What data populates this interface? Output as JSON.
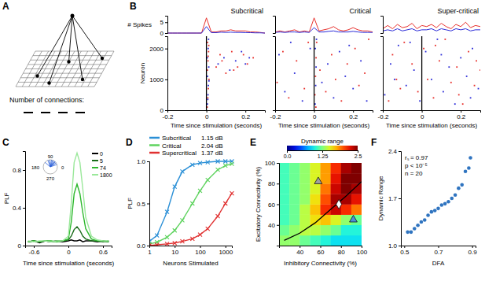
{
  "chart_data": [
    {
      "type": "diagram",
      "panel_label": "A",
      "annotation": "Number of connections:"
    },
    {
      "type": "raster",
      "panel_label": "B",
      "title": "Subcritical",
      "xlabel": "Time since stimulation (seconds)",
      "ylabel": "Neuron",
      "count_ylabel": "# Spikes",
      "xlim": [
        -0.2,
        0.3
      ],
      "xticks": [
        -0.2,
        0,
        0.2
      ],
      "ylim": [
        0,
        2400
      ],
      "yticks": [
        0,
        1000,
        2000
      ],
      "count_ylim": [
        0,
        8
      ],
      "count_yticks": [
        0,
        5
      ],
      "event_x": 0,
      "count_x": [
        -0.2,
        -0.175,
        -0.15,
        -0.125,
        -0.1,
        -0.075,
        -0.05,
        -0.025,
        0,
        0.025,
        0.05,
        0.075,
        0.1,
        0.125,
        0.15,
        0.175,
        0.2,
        0.225,
        0.25,
        0.275,
        0.3
      ],
      "counts": [
        {
          "color": "#e8302c",
          "values": [
            0,
            0,
            0,
            0,
            0,
            0,
            0,
            0,
            7,
            0.5,
            0.5,
            1,
            1,
            1.5,
            1,
            1,
            1,
            0.5,
            0.5,
            0.3,
            0
          ]
        },
        {
          "color": "#2b2bd8",
          "values": [
            0,
            0,
            0,
            0,
            0,
            0,
            0,
            0,
            3,
            0.2,
            0.2,
            0.4,
            0.3,
            0.4,
            0.3,
            0.3,
            0.2,
            0.2,
            0.1,
            0.1,
            0
          ]
        }
      ],
      "spikes": [
        {
          "color": "#e8302c",
          "x": [
            0.004,
            0.007,
            0.01,
            0.013,
            0.005,
            0.008,
            0.011,
            0.006,
            0.009,
            0.012,
            0.05,
            0.07,
            0.1,
            0.13,
            0.16,
            0.19,
            0.21,
            0.24,
            0.08,
            0.14
          ],
          "y": [
            100,
            400,
            700,
            1000,
            1300,
            1600,
            1900,
            2200,
            1750,
            2100,
            1400,
            1800,
            1200,
            1900,
            1400,
            1800,
            1500,
            1700,
            1600,
            1300
          ]
        },
        {
          "color": "#2b2bd8",
          "x": [
            0.005,
            0.008,
            0.01,
            0.006,
            0.012,
            0.004,
            0.009,
            0.011,
            0.007,
            0.013,
            0.06,
            0.09,
            0.12,
            0.15,
            0.18,
            0.2,
            0.22
          ],
          "y": [
            200,
            500,
            800,
            1100,
            1400,
            1700,
            2000,
            2300,
            350,
            950,
            1500,
            1700,
            1300,
            1600,
            1900,
            1500,
            1700
          ]
        }
      ]
    },
    {
      "type": "raster",
      "title": "Critical",
      "xlabel": "Time since stimulation (seconds)",
      "tick_labels": "x",
      "xlim": [
        -0.2,
        0.3
      ],
      "xticks": [
        -0.2,
        0,
        0.2
      ],
      "ylim": [
        0,
        2400
      ],
      "count_ylim": [
        0,
        8
      ],
      "event_x": 0,
      "count_x": [
        -0.2,
        -0.175,
        -0.15,
        -0.125,
        -0.1,
        -0.075,
        -0.05,
        -0.025,
        0,
        0.025,
        0.05,
        0.075,
        0.1,
        0.125,
        0.15,
        0.175,
        0.2,
        0.225,
        0.25,
        0.275,
        0.3
      ],
      "counts": [
        {
          "color": "#e8302c",
          "values": [
            0.5,
            1,
            0.5,
            1,
            1.5,
            0.5,
            1,
            0.5,
            7,
            1,
            1.5,
            2,
            3,
            1.5,
            1,
            1.5,
            2.5,
            1.5,
            1,
            1,
            0.5
          ]
        },
        {
          "color": "#2b2bd8",
          "values": [
            0.3,
            0.5,
            0.3,
            0.5,
            0.5,
            0.3,
            0.5,
            0.3,
            2.5,
            0.5,
            0.5,
            0.8,
            1,
            0.5,
            0.5,
            0.5,
            0.8,
            0.5,
            0.3,
            0.3,
            0.3
          ]
        }
      ],
      "spikes": [
        {
          "color": "#e8302c",
          "x": [
            -0.19,
            -0.16,
            -0.13,
            -0.09,
            -0.05,
            -0.03,
            0.004,
            0.007,
            0.01,
            0.013,
            0.009,
            0.03,
            0.06,
            0.09,
            0.11,
            0.14,
            0.17,
            0.21,
            0.23,
            0.26,
            0.28
          ],
          "y": [
            900,
            1900,
            400,
            1600,
            700,
            2200,
            500,
            1100,
            1700,
            2200,
            100,
            1300,
            600,
            1800,
            1000,
            300,
            1500,
            2000,
            800,
            1200,
            2300
          ]
        },
        {
          "color": "#2b2bd8",
          "x": [
            -0.18,
            -0.15,
            -0.1,
            -0.06,
            -0.02,
            0.005,
            0.008,
            0.01,
            0.006,
            0.012,
            0.04,
            0.07,
            0.1,
            0.13,
            0.16,
            0.2,
            0.24,
            0.27,
            -0.12,
            0.18
          ],
          "y": [
            1800,
            600,
            1200,
            300,
            2000,
            200,
            800,
            1400,
            2000,
            2300,
            900,
            1500,
            400,
            1900,
            1100,
            700,
            1600,
            300,
            2200,
            2100
          ]
        }
      ]
    },
    {
      "type": "raster",
      "title": "Super-critical",
      "xlabel": "Time since stimulation (seconds)",
      "tick_labels": "x",
      "xlim": [
        -0.2,
        0.3
      ],
      "xticks": [
        -0.2,
        0,
        0.2
      ],
      "ylim": [
        0,
        2400
      ],
      "count_ylim": [
        0,
        8
      ],
      "event_x": 0,
      "count_x": [
        -0.2,
        -0.175,
        -0.15,
        -0.125,
        -0.1,
        -0.075,
        -0.05,
        -0.025,
        0,
        0.025,
        0.05,
        0.075,
        0.1,
        0.125,
        0.15,
        0.175,
        0.2,
        0.225,
        0.25,
        0.275,
        0.3
      ],
      "counts": [
        {
          "color": "#e8302c",
          "values": [
            2,
            3.5,
            2,
            4,
            2.5,
            3,
            4.5,
            2,
            3.5,
            3,
            4,
            2.5,
            4.5,
            3,
            2,
            4,
            3,
            5,
            2.5,
            3.5,
            3
          ]
        },
        {
          "color": "#2b2bd8",
          "values": [
            1,
            1.5,
            1,
            2,
            1,
            1.5,
            2,
            1,
            1.5,
            1.5,
            2,
            1,
            2,
            1.5,
            1,
            2,
            1.5,
            2,
            1,
            1.5,
            1.5
          ]
        }
      ],
      "spikes": [
        {
          "color": "#e8302c",
          "x": [
            -0.2,
            -0.17,
            -0.15,
            -0.11,
            -0.09,
            -0.05,
            -0.02,
            0.01,
            0.03,
            0.06,
            0.09,
            0.12,
            0.15,
            0.18,
            0.21,
            0.24,
            0.27,
            0.3,
            -0.13,
            0.07,
            0.19,
            0.28
          ],
          "y": [
            1200,
            300,
            1800,
            700,
            2200,
            1500,
            600,
            2000,
            1000,
            400,
            1600,
            2300,
            900,
            1400,
            200,
            1900,
            800,
            1300,
            1000,
            2100,
            500,
            1600
          ]
        },
        {
          "color": "#2b2bd8",
          "x": [
            -0.19,
            -0.16,
            -0.12,
            -0.08,
            -0.04,
            -0.01,
            0.02,
            0.05,
            0.08,
            0.11,
            0.14,
            0.17,
            0.2,
            0.23,
            0.26,
            0.29,
            -0.14,
            0.1,
            0.25,
            -0.06
          ],
          "y": [
            500,
            1500,
            2100,
            800,
            1300,
            300,
            1900,
            1000,
            2300,
            600,
            1400,
            200,
            1700,
            1100,
            2000,
            700,
            1000,
            1800,
            400,
            2200
          ]
        }
      ]
    },
    {
      "type": "line",
      "panel_label": "C",
      "xlabel": "Time since stimulation (seconds)",
      "ylabel": "PLF",
      "xlim": [
        -0.75,
        0.75
      ],
      "xticks": [
        -0.6,
        0,
        0.6
      ],
      "ylim": [
        0,
        1
      ],
      "yticks": [
        0,
        0.4,
        0.8
      ],
      "legend": "upper right",
      "x": [
        -0.7,
        -0.6,
        -0.5,
        -0.4,
        -0.3,
        -0.2,
        -0.1,
        0,
        0.05,
        0.1,
        0.15,
        0.2,
        0.25,
        0.3,
        0.4,
        0.5,
        0.6,
        0.7
      ],
      "series": [
        {
          "name": "0",
          "color": "#000000",
          "values": [
            0.04,
            0.05,
            0.03,
            0.05,
            0.04,
            0.05,
            0.04,
            0.05,
            0.06,
            0.05,
            0.05,
            0.06,
            0.04,
            0.05,
            0.05,
            0.04,
            0.05,
            0.04
          ]
        },
        {
          "name": "5",
          "color": "#1a6b1a",
          "values": [
            0.04,
            0.05,
            0.04,
            0.05,
            0.04,
            0.05,
            0.05,
            0.06,
            0.1,
            0.17,
            0.2,
            0.16,
            0.1,
            0.07,
            0.05,
            0.05,
            0.04,
            0.05
          ]
        },
        {
          "name": "74",
          "color": "#2db82d",
          "values": [
            0.04,
            0.05,
            0.04,
            0.05,
            0.05,
            0.04,
            0.05,
            0.07,
            0.25,
            0.55,
            0.65,
            0.55,
            0.35,
            0.18,
            0.07,
            0.05,
            0.05,
            0.04
          ]
        },
        {
          "name": "1800",
          "color": "#9be89b",
          "values": [
            0.05,
            0.04,
            0.05,
            0.05,
            0.04,
            0.05,
            0.05,
            0.1,
            0.45,
            0.88,
            0.98,
            0.88,
            0.6,
            0.3,
            0.1,
            0.06,
            0.05,
            0.05
          ]
        }
      ],
      "inset": {
        "angle_ticks": [
          90,
          180,
          0,
          270
        ],
        "phases": [
          20,
          35,
          45,
          50,
          60,
          70,
          80,
          95,
          110,
          140
        ],
        "color": "#2b5fd8"
      }
    },
    {
      "type": "line",
      "panel_label": "D",
      "xlabel": "Neurons Stimulated",
      "ylabel": "PLF",
      "log": "x",
      "legend": "top",
      "xlim": [
        1,
        1800
      ],
      "xticks": [
        1,
        10,
        100,
        1000
      ],
      "ylim": [
        0,
        1
      ],
      "yticks": [
        {
          "value": 0,
          "label": "0.0"
        },
        0.5,
        {
          "value": 1,
          "label": "1.0"
        }
      ],
      "x": [
        1,
        2,
        5,
        10,
        20,
        50,
        100,
        200,
        500,
        1000,
        1800
      ],
      "series": [
        {
          "name": "Subcritical",
          "annotation": "1.15 dB",
          "color": "#2a8fd6",
          "marker": "cross",
          "values": [
            0.05,
            0.12,
            0.4,
            0.7,
            0.88,
            0.96,
            0.98,
            0.99,
            1,
            1,
            1
          ]
        },
        {
          "name": "Critical",
          "annotation": "2.04 dB",
          "color": "#5fd35f",
          "marker": "cross",
          "values": [
            0.02,
            0.04,
            0.1,
            0.18,
            0.3,
            0.5,
            0.65,
            0.78,
            0.9,
            0.95,
            0.97
          ]
        },
        {
          "name": "Supercritical",
          "annotation": "1.37 dB",
          "color": "#e03030",
          "marker": "cross",
          "values": [
            0,
            0.01,
            0.02,
            0.03,
            0.05,
            0.08,
            0.13,
            0.2,
            0.35,
            0.5,
            0.62
          ]
        }
      ]
    },
    {
      "type": "heatmap",
      "panel_label": "E",
      "xlabel": "Inhibitory Connectivity (%)",
      "ylabel": "Excitatory Connectivity (%)",
      "xlim": [
        20,
        100
      ],
      "xticks": [
        40,
        60,
        80,
        100
      ],
      "ylim": [
        20,
        100
      ],
      "yticks": [
        40,
        60,
        80,
        100
      ],
      "x": [
        25,
        35,
        45,
        55,
        65,
        75,
        85,
        95
      ],
      "y": [
        25,
        35,
        45,
        55,
        65,
        75,
        85,
        95
      ],
      "cells": [
        [
          1.3,
          1.3,
          1.2,
          1.1,
          1.0,
          0.9,
          0.9,
          0.9
        ],
        [
          1.2,
          1.3,
          1.4,
          1.4,
          1.3,
          1.2,
          1.0,
          1.0
        ],
        [
          1.1,
          1.2,
          1.4,
          1.6,
          1.7,
          1.5,
          1.3,
          1.2
        ],
        [
          1.1,
          1.2,
          1.4,
          1.7,
          2.1,
          2.3,
          2.1,
          1.9
        ],
        [
          1.1,
          1.2,
          1.3,
          1.6,
          2.0,
          2.4,
          2.4,
          2.2
        ],
        [
          1.1,
          1.2,
          1.3,
          1.5,
          1.9,
          2.3,
          2.5,
          2.4
        ],
        [
          1.1,
          1.2,
          1.3,
          1.5,
          1.8,
          2.2,
          2.5,
          2.5
        ],
        [
          1.1,
          1.2,
          1.3,
          1.5,
          1.8,
          2.1,
          2.4,
          2.5
        ]
      ],
      "colorbar_title": "Dynamic range",
      "colorbar_lim": [
        0,
        2.5
      ],
      "colorbar_ticks": [
        {
          "value": 0,
          "label": "0.0"
        },
        1.25,
        2.5
      ],
      "line": {
        "x": [
          25,
          40,
          55,
          70,
          85,
          100
        ],
        "y": [
          25,
          32,
          42,
          55,
          68,
          82
        ],
        "color": "#000000"
      },
      "markers": [
        {
          "x": 58,
          "y": 82,
          "color": "#a0a0a0",
          "marker": "triangle"
        },
        {
          "x": 78,
          "y": 60,
          "color": "#ffffff",
          "marker": "diamond"
        },
        {
          "x": 92,
          "y": 45,
          "color": "#4a90d9",
          "marker": "triangle"
        }
      ]
    },
    {
      "type": "scatter",
      "panel_label": "F",
      "xlabel": "DFA",
      "ylabel": "Dynamic Range",
      "xlim": [
        0.48,
        0.92
      ],
      "xticks": [
        0.5,
        0.7,
        0.9
      ],
      "ylim": [
        1,
        2.4
      ],
      "yticks": [
        {
          "value": 1,
          "label": "1.0"
        },
        1.7,
        2.4
      ],
      "color": "#2f74c0",
      "marker": "circle",
      "x": [
        0.52,
        0.54,
        0.56,
        0.58,
        0.6,
        0.62,
        0.64,
        0.66,
        0.68,
        0.7,
        0.72,
        0.74,
        0.76,
        0.78,
        0.8,
        0.82,
        0.84,
        0.86,
        0.88,
        0.89
      ],
      "values": [
        1.2,
        1.2,
        1.25,
        1.3,
        1.35,
        1.38,
        1.45,
        1.5,
        1.52,
        1.55,
        1.6,
        1.62,
        1.65,
        1.7,
        1.75,
        1.85,
        1.9,
        2.1,
        2.15,
        2.3
      ],
      "annotations": [
        "rₛ = 0.97",
        "p < 10⁻⁵",
        "n = 20"
      ]
    }
  ]
}
